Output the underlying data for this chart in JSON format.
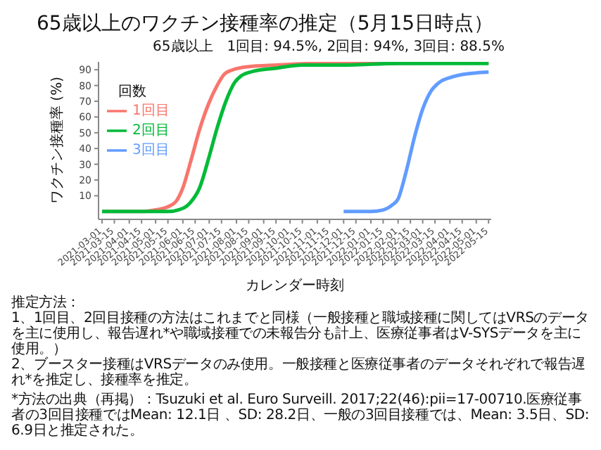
{
  "chart_data": {
    "type": "line",
    "title": "65歳以上のワクチン接種率の推定（5月15日時点）",
    "subtitle": "65歳以上　1回目: 94.5%, 2回目: 94%, 3回目: 88.5%",
    "xlabel": "カレンダー時刻",
    "ylabel": "ワクチン接種率 (%)",
    "legend_title": "回数",
    "legend": "top left",
    "grid": false,
    "marker": "none",
    "line_style": "solid",
    "xlim": [
      "2021-02-25",
      "2022-05-18"
    ],
    "xticks": [
      "2021-03-01",
      "2021-03-15",
      "2021-04-01",
      "2021-04-15",
      "2021-05-01",
      "2021-05-15",
      "2021-06-01",
      "2021-06-15",
      "2021-07-01",
      "2021-07-15",
      "2021-08-01",
      "2021-08-15",
      "2021-09-01",
      "2021-09-15",
      "2021-10-01",
      "2021-10-15",
      "2021-11-01",
      "2021-11-15",
      "2021-12-01",
      "2021-12-15",
      "2022-01-01",
      "2022-01-15",
      "2022-02-01",
      "2022-02-15",
      "2022-03-01",
      "2022-03-15",
      "2022-04-01",
      "2022-04-15",
      "2022-05-01",
      "2022-05-15"
    ],
    "ylim": [
      -5,
      95
    ],
    "yticks": [
      10,
      20,
      30,
      40,
      50,
      60,
      70,
      80,
      90
    ],
    "series": [
      {
        "name": "1回目",
        "color": "#f8766d",
        "x": [
          "2021-03-01",
          "2021-04-15",
          "2021-05-01",
          "2021-05-15",
          "2021-05-25",
          "2021-06-01",
          "2021-06-10",
          "2021-06-20",
          "2021-06-30",
          "2021-07-10",
          "2021-07-18",
          "2021-07-28",
          "2021-08-15",
          "2021-09-15",
          "2021-11-01",
          "2022-01-01",
          "2022-05-15"
        ],
        "values": [
          0,
          0,
          1,
          3,
          7,
          15,
          32,
          52,
          68,
          80,
          87,
          90,
          92,
          93,
          94,
          94,
          94.5
        ]
      },
      {
        "name": "2回目",
        "color": "#00ba38",
        "x": [
          "2021-03-01",
          "2021-05-15",
          "2021-06-01",
          "2021-06-10",
          "2021-06-20",
          "2021-07-01",
          "2021-07-10",
          "2021-07-20",
          "2021-07-30",
          "2021-08-06",
          "2021-08-20",
          "2021-09-15",
          "2021-10-15",
          "2021-12-01",
          "2022-02-01",
          "2022-05-15"
        ],
        "values": [
          0,
          0,
          2,
          6,
          15,
          35,
          53,
          70,
          82,
          86,
          89,
          91,
          93,
          93,
          94,
          94
        ]
      },
      {
        "name": "3回目",
        "color": "#619cff",
        "x": [
          "2021-12-01",
          "2022-01-01",
          "2022-01-15",
          "2022-01-25",
          "2022-02-01",
          "2022-02-10",
          "2022-02-20",
          "2022-03-01",
          "2022-03-10",
          "2022-03-20",
          "2022-04-01",
          "2022-04-15",
          "2022-05-01",
          "2022-05-15"
        ],
        "values": [
          0,
          0,
          1,
          4,
          8,
          25,
          48,
          65,
          76,
          82,
          85,
          87,
          88,
          88.5
        ]
      }
    ],
    "annotations": [
      "推定方法：",
      "1、1回目、2回目接種の方法はこれまでと同様（一般接種と職域接種に関してはVRSのデータを主に使用し、報告遅れ*や職域接種での未報告分も計上、医療従事者はV-SYSデータを主に使用。）",
      "2、ブースター接種はVRSデータのみ使用。一般接種と医療従事者のデータそれぞれで報告遅れ*を推定し、接種率を推定。",
      "*方法の出典（再掲）：Tsuzuki et al. Euro Surveill. 2017;22(46):pii=17-00710.医療従事者の3回目接種ではMean: 12.1日 、SD: 28.2日、一般の3回目接種では、Mean: 3.5日、SD: 6.9日と推定された。"
    ]
  }
}
